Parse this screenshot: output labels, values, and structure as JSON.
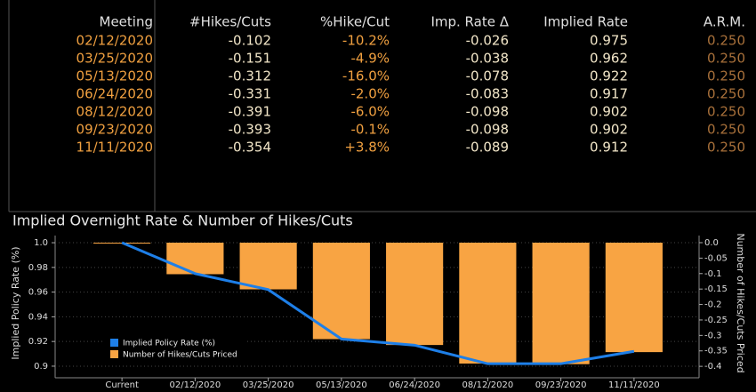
{
  "table": {
    "columns": [
      "Meeting",
      "#Hikes/Cuts",
      "%Hike/Cut",
      "Imp. Rate Δ",
      "Implied Rate",
      "A.R.M."
    ],
    "rows": [
      [
        "02/12/2020",
        "-0.102",
        "-10.2%",
        "-0.026",
        "0.975",
        "0.250"
      ],
      [
        "03/25/2020",
        "-0.151",
        "-4.9%",
        "-0.038",
        "0.962",
        "0.250"
      ],
      [
        "05/13/2020",
        "-0.312",
        "-16.0%",
        "-0.078",
        "0.922",
        "0.250"
      ],
      [
        "06/24/2020",
        "-0.331",
        "-2.0%",
        "-0.083",
        "0.917",
        "0.250"
      ],
      [
        "08/12/2020",
        "-0.391",
        "-6.0%",
        "-0.098",
        "0.902",
        "0.250"
      ],
      [
        "09/23/2020",
        "-0.393",
        "-0.1%",
        "-0.098",
        "0.902",
        "0.250"
      ],
      [
        "11/11/2020",
        "-0.354",
        "+3.8%",
        "-0.089",
        "0.912",
        "0.250"
      ]
    ]
  },
  "chart_data": {
    "type": "bar-line",
    "title": "Implied Overnight Rate & Number of Hikes/Cuts",
    "y_label": "Implied Policy Rate (%)",
    "y2_label": "Number of Hikes/Cuts Priced",
    "categories": [
      "Current",
      "02/12/2020",
      "03/25/2020",
      "05/13/2020",
      "06/24/2020",
      "08/12/2020",
      "09/23/2020",
      "11/11/2020"
    ],
    "series": [
      {
        "name": "Implied Policy Rate (%)",
        "type": "line",
        "color": "#1e7fe8",
        "values": [
          1.0,
          0.975,
          0.962,
          0.922,
          0.917,
          0.902,
          0.902,
          0.912
        ]
      },
      {
        "name": "Number of Hikes/Cuts Priced",
        "type": "bar",
        "axis": "y2",
        "color": "#f8a443",
        "values": [
          0,
          -0.102,
          -0.151,
          -0.312,
          -0.331,
          -0.391,
          -0.393,
          -0.354
        ]
      }
    ],
    "ylim": [
      0.8906,
      1.0058
    ],
    "yticks": [
      {
        "value": 1,
        "label": "1.0"
      },
      0.98,
      0.96,
      0.94,
      0.92,
      0.9
    ],
    "y2lim": [
      -0.437,
      0.023
    ],
    "y2ticks": [
      {
        "value": 0,
        "label": "0.0"
      },
      -0.05,
      -0.1,
      -0.15,
      -0.2,
      -0.25,
      -0.3,
      -0.35,
      -0.4
    ],
    "legend": "lower-left"
  }
}
